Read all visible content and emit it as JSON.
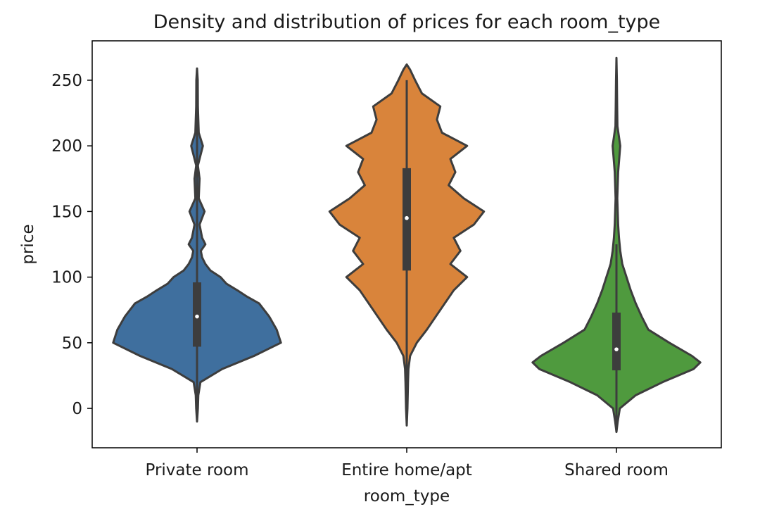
{
  "chart_data": {
    "type": "violin",
    "title": "Density and distribution of prices for each room_type",
    "xlabel": "room_type",
    "ylabel": "price",
    "ylim": [
      -30,
      280
    ],
    "yticks": [
      0,
      50,
      100,
      150,
      200,
      250
    ],
    "grid": false,
    "legend": "none",
    "categories": [
      "Private room",
      "Entire home/apt",
      "Shared room"
    ],
    "series": [
      {
        "category": "Private room",
        "color": "#3f6f9e",
        "range": [
          -10,
          259
        ],
        "median": 70,
        "q1": 47,
        "q3": 96,
        "whisker": [
          -10,
          259
        ],
        "density": [
          [
            -10,
            0.0
          ],
          [
            0,
            0.01
          ],
          [
            10,
            0.015
          ],
          [
            20,
            0.04
          ],
          [
            30,
            0.3
          ],
          [
            40,
            0.68
          ],
          [
            50,
            1.0
          ],
          [
            60,
            0.95
          ],
          [
            70,
            0.86
          ],
          [
            80,
            0.74
          ],
          [
            85,
            0.6
          ],
          [
            90,
            0.48
          ],
          [
            95,
            0.35
          ],
          [
            100,
            0.28
          ],
          [
            105,
            0.16
          ],
          [
            110,
            0.1
          ],
          [
            115,
            0.06
          ],
          [
            120,
            0.045
          ],
          [
            125,
            0.1
          ],
          [
            130,
            0.06
          ],
          [
            140,
            0.03
          ],
          [
            150,
            0.09
          ],
          [
            160,
            0.02
          ],
          [
            175,
            0.03
          ],
          [
            185,
            0.01
          ],
          [
            200,
            0.07
          ],
          [
            210,
            0.02
          ],
          [
            230,
            0.01
          ],
          [
            250,
            0.008
          ],
          [
            259,
            0.0
          ]
        ]
      },
      {
        "category": "Entire home/apt",
        "color": "#d9843b",
        "range": [
          -13,
          262
        ],
        "median": 145,
        "q1": 105,
        "q3": 183,
        "whisker": [
          -13,
          250
        ],
        "density": [
          [
            -13,
            0.0
          ],
          [
            0,
            0.008
          ],
          [
            20,
            0.015
          ],
          [
            30,
            0.02
          ],
          [
            40,
            0.04
          ],
          [
            50,
            0.12
          ],
          [
            60,
            0.24
          ],
          [
            75,
            0.4
          ],
          [
            90,
            0.56
          ],
          [
            100,
            0.72
          ],
          [
            110,
            0.52
          ],
          [
            120,
            0.64
          ],
          [
            130,
            0.56
          ],
          [
            140,
            0.8
          ],
          [
            150,
            0.92
          ],
          [
            160,
            0.68
          ],
          [
            170,
            0.5
          ],
          [
            180,
            0.58
          ],
          [
            190,
            0.52
          ],
          [
            200,
            0.72
          ],
          [
            210,
            0.42
          ],
          [
            220,
            0.36
          ],
          [
            230,
            0.4
          ],
          [
            240,
            0.18
          ],
          [
            250,
            0.1
          ],
          [
            258,
            0.04
          ],
          [
            262,
            0.0
          ]
        ]
      },
      {
        "category": "Shared room",
        "color": "#4f9a3e",
        "range": [
          -18,
          267
        ],
        "median": 45,
        "q1": 29,
        "q3": 73,
        "whisker": [
          -18,
          125
        ],
        "density": [
          [
            -18,
            0.0
          ],
          [
            -10,
            0.015
          ],
          [
            0,
            0.04
          ],
          [
            10,
            0.23
          ],
          [
            20,
            0.55
          ],
          [
            30,
            0.92
          ],
          [
            35,
            1.0
          ],
          [
            40,
            0.9
          ],
          [
            50,
            0.63
          ],
          [
            60,
            0.38
          ],
          [
            70,
            0.3
          ],
          [
            80,
            0.23
          ],
          [
            90,
            0.17
          ],
          [
            100,
            0.12
          ],
          [
            110,
            0.07
          ],
          [
            120,
            0.045
          ],
          [
            130,
            0.03
          ],
          [
            140,
            0.02
          ],
          [
            150,
            0.015
          ],
          [
            160,
            0.01
          ],
          [
            180,
            0.02
          ],
          [
            200,
            0.045
          ],
          [
            215,
            0.012
          ],
          [
            230,
            0.008
          ],
          [
            250,
            0.005
          ],
          [
            267,
            0.0
          ]
        ]
      }
    ]
  }
}
